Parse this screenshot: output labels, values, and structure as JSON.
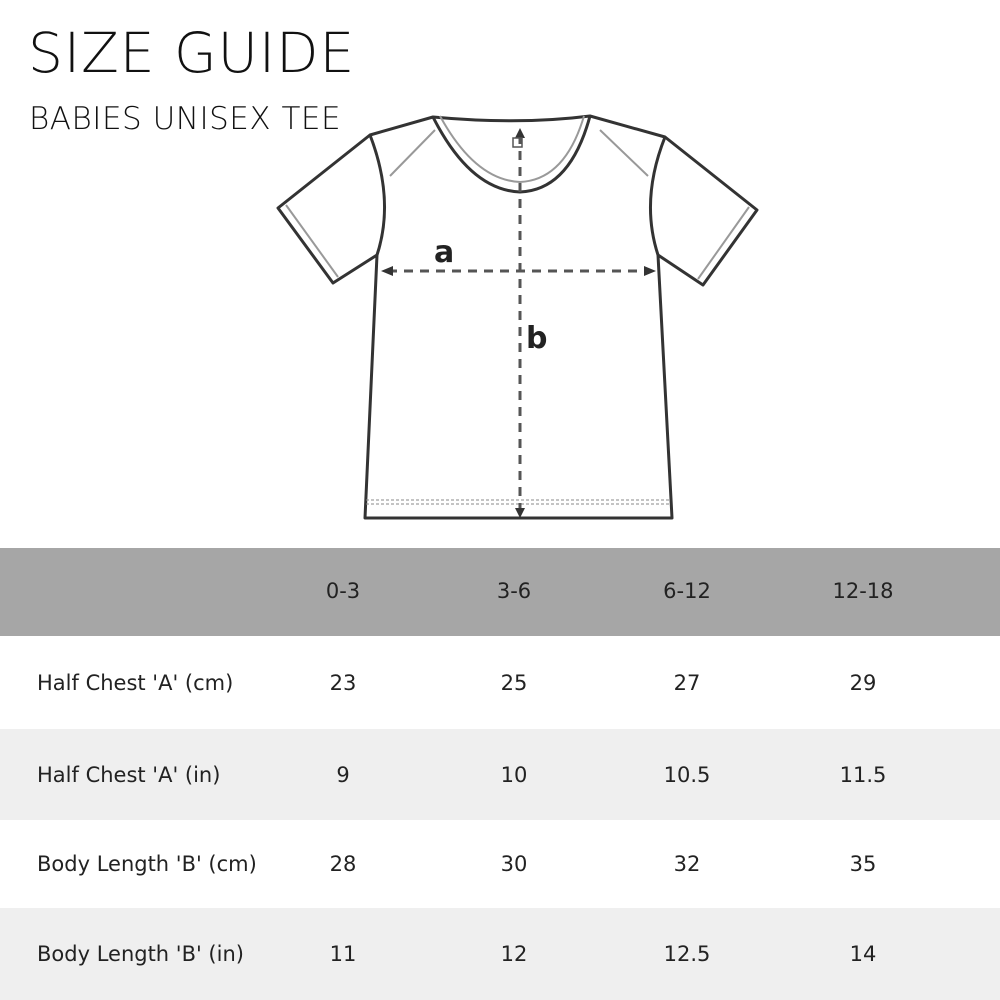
{
  "header": {
    "title": "SIZE GUIDE",
    "subtitle": "BABIES UNISEX TEE"
  },
  "diagram": {
    "label_a": "a",
    "label_b": "b"
  },
  "table": {
    "columns": [
      "0-3",
      "3-6",
      "6-12",
      "12-18"
    ],
    "rows": [
      {
        "label": "Half Chest  'A' (cm)",
        "values": [
          "23",
          "25",
          "27",
          "29"
        ]
      },
      {
        "label": "Half Chest 'A' (in)",
        "values": [
          "9",
          "10",
          "10.5",
          "11.5"
        ]
      },
      {
        "label": "Body Length  'B' (cm)",
        "values": [
          "28",
          "30",
          "32",
          "35"
        ]
      },
      {
        "label": "Body Length  'B' (in)",
        "values": [
          "11",
          "12",
          "12.5",
          "14"
        ]
      }
    ],
    "colors": {
      "header": "#a6a6a6",
      "stripe": "#efefef"
    }
  }
}
